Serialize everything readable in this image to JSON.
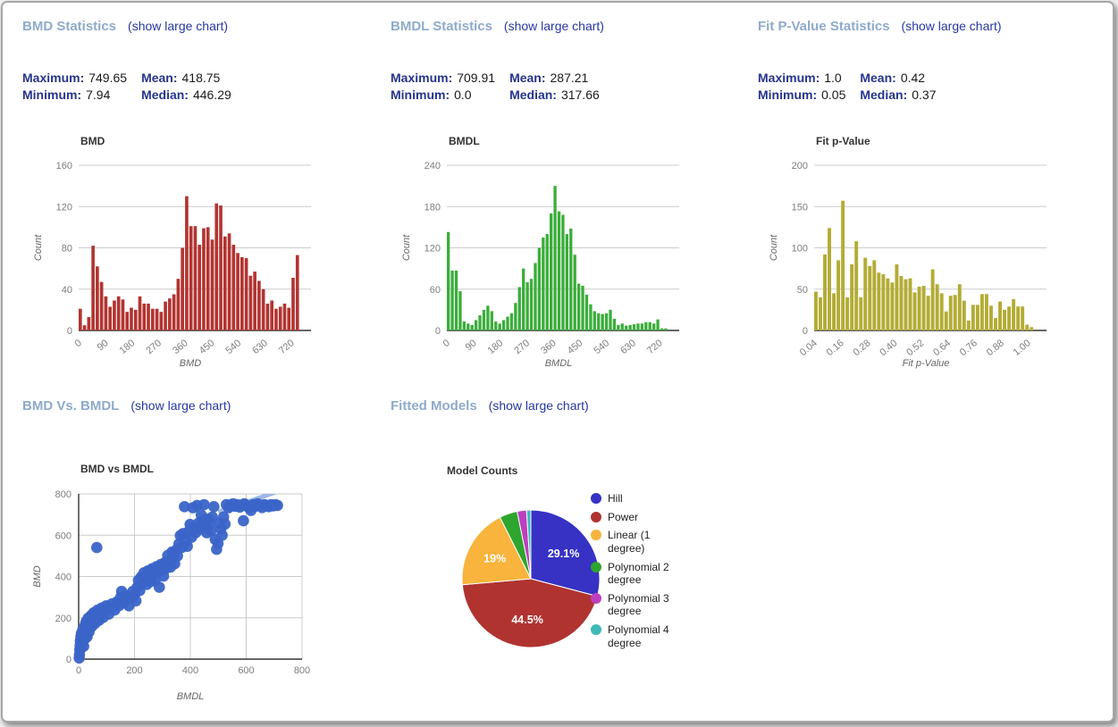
{
  "link_label": "(show large chart)",
  "colors": {
    "header": "#8FAACC",
    "link": "#2737A3",
    "stat_label": "#26348C",
    "grid": "#cccccc",
    "axis": "#333333",
    "tick_text": "#7d7d7d",
    "axis_label_text": "#666666"
  },
  "panels": [
    {
      "id": "bmd",
      "title": "BMD Statistics",
      "link_label": "(show large chart)",
      "stats": [
        {
          "label": "Maximum:",
          "value": "749.65"
        },
        {
          "label": "Mean:",
          "value": "418.75"
        },
        {
          "label": "Minimum:",
          "value": "7.94"
        },
        {
          "label": "Median:",
          "value": "446.29"
        }
      ]
    },
    {
      "id": "bmdl",
      "title": "BMDL Statistics",
      "link_label": "(show large chart)",
      "stats": [
        {
          "label": "Maximum:",
          "value": "709.91"
        },
        {
          "label": "Mean:",
          "value": "287.21"
        },
        {
          "label": "Minimum:",
          "value": "0.0"
        },
        {
          "label": "Median:",
          "value": "317.66"
        }
      ]
    },
    {
      "id": "fit-p-value",
      "title": "Fit P-Value Statistics",
      "link_label": "(show large chart)",
      "stats": [
        {
          "label": "Maximum:",
          "value": "1.0"
        },
        {
          "label": "Mean:",
          "value": "0.42"
        },
        {
          "label": "Minimum:",
          "value": "0.05"
        },
        {
          "label": "Median:",
          "value": "0.37"
        }
      ]
    },
    {
      "id": "bmd-vs-bmdl",
      "title": "BMD Vs. BMDL",
      "link_label": "(show large chart)"
    },
    {
      "id": "fitted-models",
      "title": "Fitted Models",
      "link_label": "(show large chart)"
    }
  ],
  "chart_data": [
    {
      "type": "bar",
      "subtype": "histogram",
      "title": "BMD",
      "xlabel": "BMD",
      "ylabel": "Count",
      "color": "#B23431",
      "ylim": [
        0,
        160
      ],
      "y_ticks": [
        0,
        40,
        80,
        120,
        160
      ],
      "x_tick_values": [
        0,
        90,
        180,
        270,
        360,
        450,
        540,
        630,
        720
      ],
      "x_tick_labels": [
        "0",
        "90",
        "180",
        "270",
        "360",
        "450",
        "540",
        "630",
        "720"
      ],
      "x_range": [
        0,
        757
      ],
      "bar_domain": [
        0,
        750
      ],
      "values": [
        21,
        5,
        13,
        82,
        62,
        47,
        33,
        23,
        29,
        33,
        30,
        18,
        22,
        20,
        33,
        26,
        26,
        21,
        21,
        18,
        28,
        31,
        35,
        50,
        80,
        130,
        101,
        101,
        83,
        99,
        100,
        88,
        123,
        121,
        91,
        94,
        83,
        75,
        71,
        70,
        53,
        57,
        48,
        40,
        26,
        29,
        21,
        23,
        26,
        22,
        51,
        73
      ]
    },
    {
      "type": "bar",
      "subtype": "histogram",
      "title": "BMDL",
      "xlabel": "BMDL",
      "ylabel": "Count",
      "color": "#3BAD3B",
      "ylim": [
        0,
        240
      ],
      "y_ticks": [
        0,
        60,
        120,
        180,
        240
      ],
      "x_tick_values": [
        0,
        90,
        180,
        270,
        360,
        450,
        540,
        630,
        720
      ],
      "x_tick_labels": [
        "0",
        "90",
        "180",
        "270",
        "360",
        "450",
        "540",
        "630",
        "720"
      ],
      "x_range": [
        0,
        757
      ],
      "bar_domain": [
        0,
        750
      ],
      "values": [
        143,
        87,
        87,
        57,
        13,
        10,
        8,
        15,
        22,
        30,
        36,
        28,
        13,
        10,
        15,
        20,
        25,
        40,
        63,
        90,
        70,
        75,
        98,
        120,
        135,
        140,
        170,
        210,
        173,
        168,
        140,
        148,
        110,
        68,
        65,
        52,
        38,
        28,
        25,
        24,
        25,
        30,
        17,
        8,
        10,
        7,
        8,
        9,
        10,
        10,
        12,
        12,
        10,
        16,
        3,
        3
      ]
    },
    {
      "type": "bar",
      "subtype": "histogram",
      "title": "Fit p-Value",
      "xlabel": "Fit p-Value",
      "ylabel": "Count",
      "color": "#B3AC35",
      "ylim": [
        0,
        200
      ],
      "y_ticks": [
        0,
        50,
        100,
        150,
        200
      ],
      "x_tick_values": [
        0.04,
        0.16,
        0.28,
        0.4,
        0.52,
        0.64,
        0.76,
        0.88,
        1.0
      ],
      "x_tick_labels": [
        "0.04",
        "0.16",
        "0.28",
        "0.40",
        "0.52",
        "0.64",
        "0.76",
        "0.88",
        "1.00"
      ],
      "x_range": [
        0.04,
        1.045
      ],
      "bar_domain": [
        0.04,
        1.03
      ],
      "values": [
        47,
        40,
        92,
        124,
        45,
        85,
        157,
        40,
        80,
        108,
        40,
        88,
        78,
        85,
        70,
        68,
        63,
        58,
        80,
        66,
        62,
        63,
        46,
        53,
        54,
        42,
        74,
        56,
        45,
        23,
        42,
        43,
        56,
        36,
        12,
        31,
        31,
        44,
        44,
        30,
        15,
        35,
        25,
        29,
        38,
        29,
        29,
        7,
        4
      ]
    },
    {
      "type": "scatter",
      "title": "BMD vs BMDL",
      "xlabel": "BMDL",
      "ylabel": "BMD",
      "color": "#3A64C8",
      "point_radius": 6.3,
      "xlim": [
        0,
        800
      ],
      "ylim": [
        0,
        800
      ],
      "x_ticks": [
        0,
        200,
        400,
        600,
        800
      ],
      "y_ticks": [
        0,
        200,
        400,
        600,
        800
      ],
      "trendline": {
        "color": "#9FB8E8",
        "from": [
          500,
          713
        ],
        "to": [
          720,
          815
        ]
      },
      "points": [
        [
          2,
          5
        ],
        [
          3,
          22
        ],
        [
          4,
          45
        ],
        [
          5,
          65
        ],
        [
          6,
          88
        ],
        [
          8,
          108
        ],
        [
          9,
          55
        ],
        [
          10,
          125
        ],
        [
          12,
          72
        ],
        [
          13,
          95
        ],
        [
          15,
          142
        ],
        [
          16,
          112
        ],
        [
          18,
          62
        ],
        [
          20,
          152
        ],
        [
          22,
          98
        ],
        [
          24,
          168
        ],
        [
          25,
          128
        ],
        [
          27,
          182
        ],
        [
          30,
          108
        ],
        [
          32,
          152
        ],
        [
          34,
          198
        ],
        [
          37,
          132
        ],
        [
          40,
          175
        ],
        [
          44,
          210
        ],
        [
          47,
          158
        ],
        [
          50,
          192
        ],
        [
          54,
          225
        ],
        [
          58,
          172
        ],
        [
          65,
          540
        ],
        [
          63,
          205
        ],
        [
          68,
          238
        ],
        [
          73,
          188
        ],
        [
          78,
          215
        ],
        [
          83,
          248
        ],
        [
          88,
          202
        ],
        [
          93,
          232
        ],
        [
          99,
          258
        ],
        [
          108,
          218
        ],
        [
          114,
          246
        ],
        [
          120,
          268
        ],
        [
          129,
          238
        ],
        [
          138,
          278
        ],
        [
          144,
          258
        ],
        [
          150,
          298
        ],
        [
          154,
          328
        ],
        [
          160,
          272
        ],
        [
          168,
          308
        ],
        [
          174,
          292
        ],
        [
          180,
          258
        ],
        [
          188,
          298
        ],
        [
          194,
          328
        ],
        [
          200,
          312
        ],
        [
          205,
          282
        ],
        [
          210,
          348
        ],
        [
          214,
          382
        ],
        [
          219,
          332
        ],
        [
          224,
          398
        ],
        [
          229,
          368
        ],
        [
          234,
          418
        ],
        [
          239,
          388
        ],
        [
          244,
          362
        ],
        [
          249,
          428
        ],
        [
          254,
          404
        ],
        [
          259,
          376
        ],
        [
          264,
          438
        ],
        [
          269,
          410
        ],
        [
          274,
          382
        ],
        [
          279,
          448
        ],
        [
          284,
          420
        ],
        [
          289,
          348
        ],
        [
          294,
          458
        ],
        [
          299,
          430
        ],
        [
          304,
          402
        ],
        [
          309,
          468
        ],
        [
          314,
          440
        ],
        [
          319,
          502
        ],
        [
          324,
          474
        ],
        [
          329,
          446
        ],
        [
          334,
          518
        ],
        [
          339,
          490
        ],
        [
          344,
          462
        ],
        [
          349,
          528
        ],
        [
          354,
          500
        ],
        [
          359,
          558
        ],
        [
          364,
          598
        ],
        [
          369,
          540
        ],
        [
          374,
          608
        ],
        [
          379,
          738
        ],
        [
          384,
          570
        ],
        [
          389,
          546
        ],
        [
          394,
          618
        ],
        [
          399,
          652
        ],
        [
          404,
          590
        ],
        [
          409,
          733
        ],
        [
          414,
          638
        ],
        [
          419,
          612
        ],
        [
          424,
          744
        ],
        [
          429,
          658
        ],
        [
          434,
          630
        ],
        [
          439,
          698
        ],
        [
          444,
          668
        ],
        [
          449,
          748
        ],
        [
          454,
          640
        ],
        [
          459,
          612
        ],
        [
          464,
          678
        ],
        [
          469,
          650
        ],
        [
          474,
          622
        ],
        [
          479,
          688
        ],
        [
          484,
          738
        ],
        [
          489,
          580
        ],
        [
          494,
          532
        ],
        [
          499,
          560
        ],
        [
          504,
          658
        ],
        [
          509,
          630
        ],
        [
          514,
          600
        ],
        [
          519,
          688
        ],
        [
          524,
          654
        ],
        [
          529,
          748
        ],
        [
          537,
          733
        ],
        [
          545,
          744
        ],
        [
          553,
          752
        ],
        [
          561,
          740
        ],
        [
          569,
          748
        ],
        [
          577,
          736
        ],
        [
          585,
          746
        ],
        [
          590,
          670
        ],
        [
          593,
          752
        ],
        [
          601,
          744
        ],
        [
          609,
          734
        ],
        [
          617,
          720
        ],
        [
          625,
          748
        ],
        [
          633,
          740
        ],
        [
          641,
          752
        ],
        [
          649,
          744
        ],
        [
          657,
          734
        ],
        [
          665,
          748
        ],
        [
          673,
          744
        ],
        [
          681,
          738
        ],
        [
          689,
          748
        ],
        [
          697,
          742
        ],
        [
          705,
          748
        ],
        [
          712,
          744
        ]
      ]
    },
    {
      "type": "pie",
      "title": "Model Counts",
      "slices": [
        {
          "label": "Hill",
          "pct": 29.1,
          "pct_label": "29.1%",
          "color": "#3732C4"
        },
        {
          "label": "Power",
          "pct": 44.5,
          "pct_label": "44.5%",
          "color": "#B03330"
        },
        {
          "label": "Linear (1 degree)",
          "pct": 19,
          "pct_label": "19%",
          "color": "#F8B43C"
        },
        {
          "label": "Polynomial 2 degree",
          "pct": 4.2,
          "pct_label": "",
          "color": "#2EA52E"
        },
        {
          "label": "Polynomial 3 degree",
          "pct": 2.2,
          "pct_label": "",
          "color": "#BE3FBE"
        },
        {
          "label": "Polynomial 4 degree",
          "pct": 1.0,
          "pct_label": "",
          "color": "#3FB8B8"
        }
      ],
      "legend_position": "right"
    }
  ]
}
